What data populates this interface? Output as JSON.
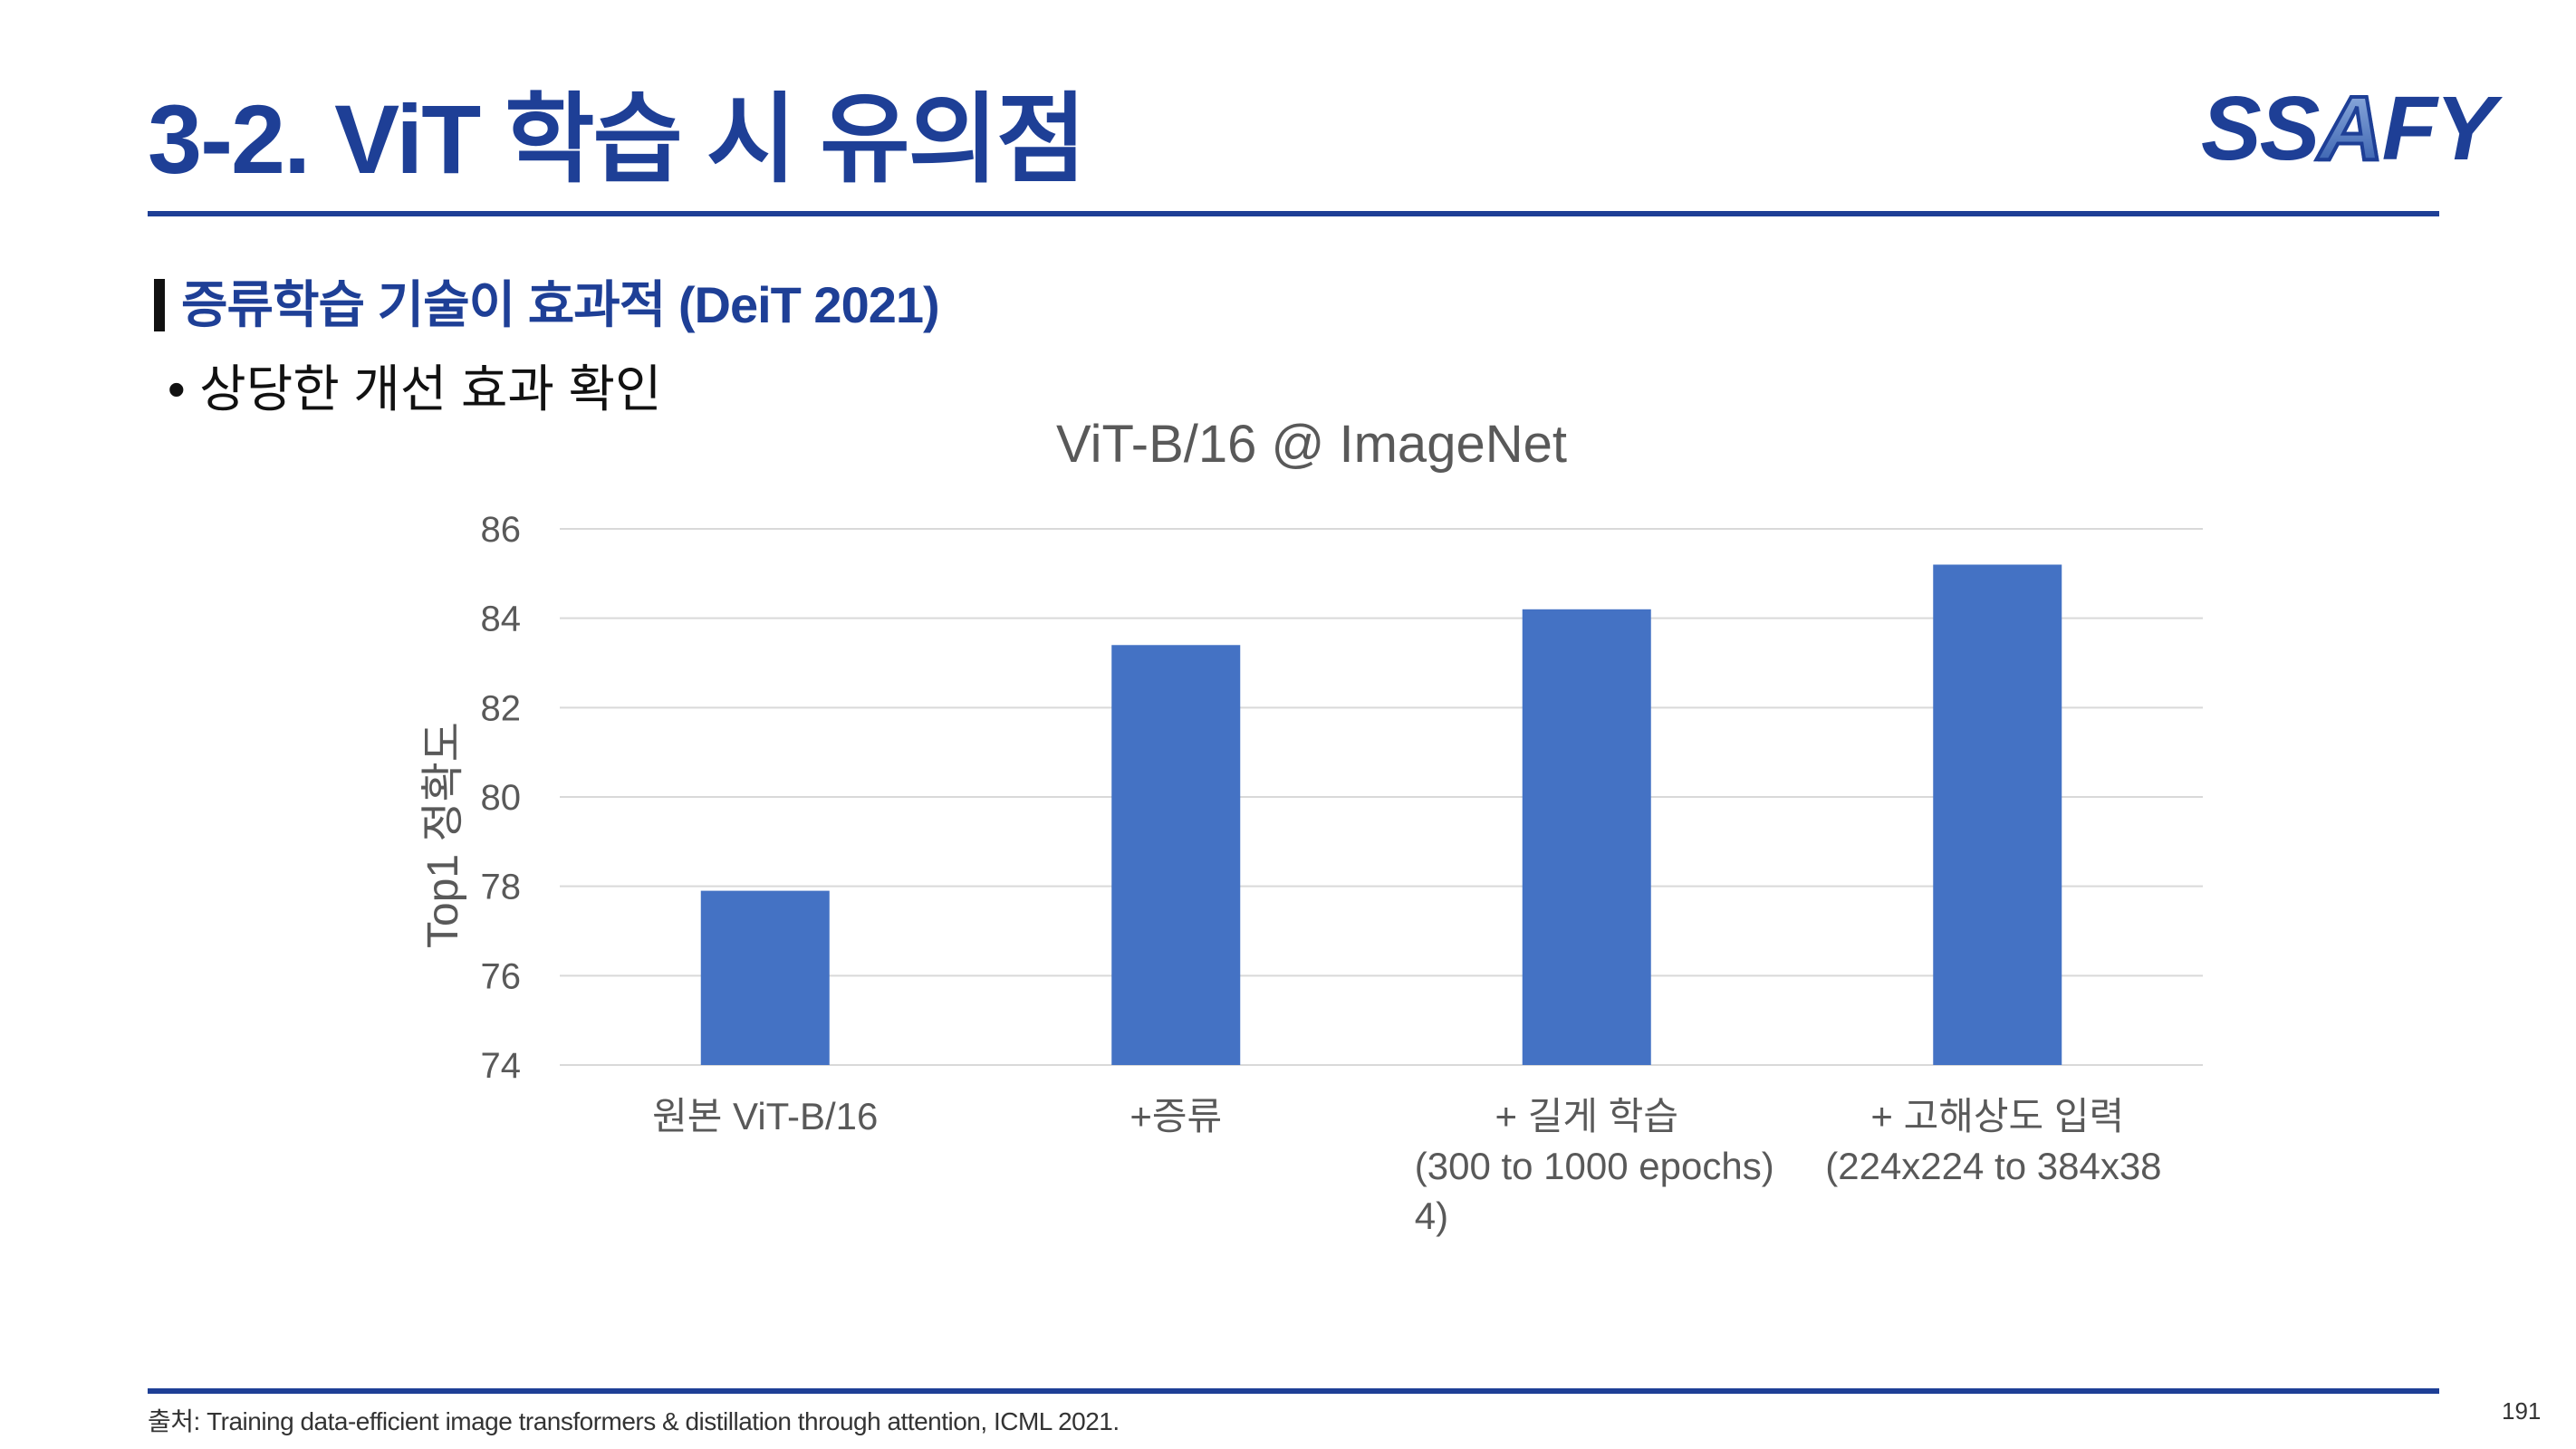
{
  "header": {
    "title": "3-2. ViT 학습 시 유의점",
    "logo_text_1": "SS",
    "logo_text_2": "A",
    "logo_text_3": "FY"
  },
  "section": {
    "heading": "증류학습 기술이 효과적 (DeiT 2021)",
    "bullet_mark": "•",
    "bullet": "상당한 개선 효과 확인"
  },
  "colors": {
    "brand": "#1e3f96",
    "bar": "#4472c4",
    "grid": "#d9d9d9"
  },
  "chart_data": {
    "type": "bar",
    "title": "ViT-B/16 @ ImageNet",
    "ylabel": "Top1 정확도",
    "xlabel": "",
    "ylim": [
      74,
      86
    ],
    "yticks": [
      74,
      76,
      78,
      80,
      82,
      84,
      86
    ],
    "categories": [
      [
        "원본 ViT-B/16"
      ],
      [
        "+증류"
      ],
      [
        "+ 길게 학습",
        "(300 to 1000 epochs)",
        "4)"
      ],
      [
        "+ 고해상도 입력",
        "(224x224 to 384x38"
      ]
    ],
    "values": [
      77.9,
      83.4,
      84.2,
      85.2
    ],
    "grid": true,
    "legend": "none"
  },
  "footer": {
    "source": "출처: Training data-efficient image transformers & distillation through attention, ICML 2021.",
    "page": "191"
  }
}
